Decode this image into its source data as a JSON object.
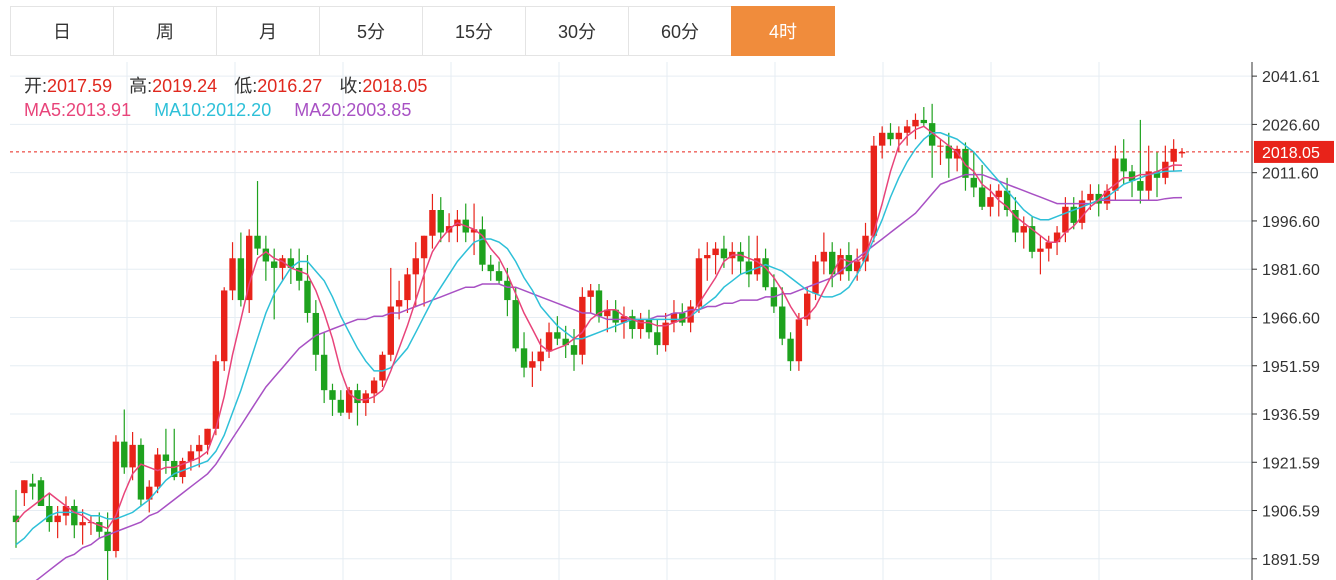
{
  "tabs": [
    {
      "label": "日",
      "active": false
    },
    {
      "label": "周",
      "active": false
    },
    {
      "label": "月",
      "active": false
    },
    {
      "label": "5分",
      "active": false
    },
    {
      "label": "15分",
      "active": false
    },
    {
      "label": "30分",
      "active": false
    },
    {
      "label": "60分",
      "active": false
    },
    {
      "label": "4时",
      "active": true
    }
  ],
  "ohlc": {
    "open_label": "开:",
    "open": "2017.59",
    "high_label": "高:",
    "high": "2019.24",
    "low_label": "低:",
    "low": "2016.27",
    "close_label": "收:",
    "close": "2018.05"
  },
  "ma": {
    "ma5_label": "MA5:",
    "ma5": "2013.91",
    "ma10_label": "MA10:",
    "ma10": "2012.20",
    "ma20_label": "MA20:",
    "ma20": "2003.85"
  },
  "colors": {
    "up": "#e8231a",
    "down": "#1ea21e",
    "ma5": "#e8447a",
    "ma10": "#2ec0d8",
    "ma20": "#a851c4",
    "grid": "#e6edf3",
    "active_tab": "#f08c3c",
    "price_tag": "#e8231a"
  },
  "chart_data": {
    "type": "candlestick",
    "ylim": [
      1885,
      2046
    ],
    "y_ticks": [
      "2041.61",
      "2026.60",
      "2011.60",
      "1996.60",
      "1981.60",
      "1966.60",
      "1951.59",
      "1936.59",
      "1921.59",
      "1906.59",
      "1891.59"
    ],
    "current_price": "2018.05",
    "candles": [
      [
        1905,
        1913,
        1895,
        1903
      ],
      [
        1912,
        1916,
        1908,
        1916
      ],
      [
        1915,
        1918,
        1910,
        1914
      ],
      [
        1916,
        1917,
        1908,
        1908
      ],
      [
        1908,
        1912,
        1900,
        1903
      ],
      [
        1903,
        1908,
        1898,
        1905
      ],
      [
        1905,
        1911,
        1902,
        1908
      ],
      [
        1908,
        1910,
        1898,
        1902
      ],
      [
        1902,
        1907,
        1896,
        1903
      ],
      [
        1903,
        1905,
        1899,
        1903
      ],
      [
        1903,
        1906,
        1898,
        1900
      ],
      [
        1900,
        1906,
        1885,
        1894
      ],
      [
        1894,
        1930,
        1892,
        1928
      ],
      [
        1928,
        1938,
        1918,
        1920
      ],
      [
        1920,
        1931,
        1916,
        1927
      ],
      [
        1927,
        1929,
        1908,
        1910
      ],
      [
        1910,
        1916,
        1906,
        1914
      ],
      [
        1914,
        1926,
        1912,
        1924
      ],
      [
        1924,
        1932,
        1918,
        1922
      ],
      [
        1922,
        1932,
        1916,
        1917
      ],
      [
        1917,
        1923,
        1915,
        1922
      ],
      [
        1922,
        1927,
        1919,
        1925
      ],
      [
        1925,
        1930,
        1920,
        1927
      ],
      [
        1927,
        1932,
        1924,
        1932
      ],
      [
        1932,
        1955,
        1930,
        1953
      ],
      [
        1953,
        1976,
        1950,
        1975
      ],
      [
        1975,
        1990,
        1972,
        1985
      ],
      [
        1985,
        1993,
        1970,
        1972
      ],
      [
        1972,
        1994,
        1968,
        1992
      ],
      [
        1992,
        2009,
        1986,
        1988
      ],
      [
        1988,
        1992,
        1978,
        1984
      ],
      [
        1984,
        1988,
        1966,
        1982
      ],
      [
        1982,
        1986,
        1978,
        1985
      ],
      [
        1985,
        1988,
        1977,
        1982
      ],
      [
        1982,
        1988,
        1975,
        1978
      ],
      [
        1978,
        1986,
        1965,
        1968
      ],
      [
        1968,
        1972,
        1950,
        1955
      ],
      [
        1955,
        1962,
        1940,
        1944
      ],
      [
        1944,
        1946,
        1936,
        1941
      ],
      [
        1941,
        1944,
        1936,
        1937
      ],
      [
        1937,
        1945,
        1935,
        1944
      ],
      [
        1944,
        1946,
        1933,
        1940
      ],
      [
        1940,
        1944,
        1936,
        1943
      ],
      [
        1943,
        1948,
        1940,
        1947
      ],
      [
        1947,
        1956,
        1945,
        1955
      ],
      [
        1955,
        1982,
        1953,
        1970
      ],
      [
        1970,
        1978,
        1966,
        1972
      ],
      [
        1972,
        1982,
        1968,
        1980
      ],
      [
        1980,
        1990,
        1970,
        1985
      ],
      [
        1985,
        1992,
        1970,
        1992
      ],
      [
        1992,
        2005,
        1988,
        2000
      ],
      [
        2000,
        2004,
        1990,
        1993
      ],
      [
        1993,
        1999,
        1990,
        1995
      ],
      [
        1995,
        2000,
        1990,
        1997
      ],
      [
        1997,
        2002,
        1990,
        1993
      ],
      [
        1993,
        2002,
        1986,
        1994
      ],
      [
        1994,
        1998,
        1981,
        1983
      ],
      [
        1983,
        1986,
        1978,
        1981
      ],
      [
        1981,
        1984,
        1977,
        1978
      ],
      [
        1978,
        1982,
        1967,
        1972
      ],
      [
        1972,
        1976,
        1956,
        1957
      ],
      [
        1957,
        1962,
        1948,
        1951
      ],
      [
        1951,
        1956,
        1945,
        1953
      ],
      [
        1953,
        1960,
        1950,
        1956
      ],
      [
        1956,
        1965,
        1954,
        1962
      ],
      [
        1962,
        1967,
        1958,
        1960
      ],
      [
        1960,
        1964,
        1954,
        1958
      ],
      [
        1958,
        1963,
        1950,
        1955
      ],
      [
        1955,
        1976,
        1952,
        1973
      ],
      [
        1973,
        1977,
        1968,
        1975
      ],
      [
        1975,
        1977,
        1965,
        1967
      ],
      [
        1967,
        1972,
        1962,
        1969
      ],
      [
        1969,
        1972,
        1962,
        1965
      ],
      [
        1965,
        1970,
        1960,
        1967
      ],
      [
        1967,
        1969,
        1960,
        1963
      ],
      [
        1963,
        1968,
        1960,
        1966
      ],
      [
        1966,
        1969,
        1960,
        1962
      ],
      [
        1962,
        1966,
        1955,
        1958
      ],
      [
        1958,
        1968,
        1956,
        1965
      ],
      [
        1965,
        1972,
        1962,
        1968
      ],
      [
        1968,
        1971,
        1964,
        1965
      ],
      [
        1965,
        1972,
        1962,
        1970
      ],
      [
        1970,
        1988,
        1968,
        1985
      ],
      [
        1985,
        1990,
        1978,
        1986
      ],
      [
        1986,
        1990,
        1980,
        1988
      ],
      [
        1988,
        1992,
        1982,
        1985
      ],
      [
        1985,
        1990,
        1980,
        1987
      ],
      [
        1987,
        1990,
        1980,
        1984
      ],
      [
        1984,
        1992,
        1976,
        1980
      ],
      [
        1980,
        1992,
        1978,
        1985
      ],
      [
        1985,
        1988,
        1975,
        1976
      ],
      [
        1976,
        1980,
        1968,
        1970
      ],
      [
        1970,
        1976,
        1958,
        1960
      ],
      [
        1960,
        1962,
        1950,
        1953
      ],
      [
        1953,
        1968,
        1950,
        1966
      ],
      [
        1966,
        1976,
        1964,
        1974
      ],
      [
        1974,
        1986,
        1972,
        1984
      ],
      [
        1984,
        1993,
        1980,
        1987
      ],
      [
        1987,
        1990,
        1976,
        1980
      ],
      [
        1980,
        1988,
        1978,
        1986
      ],
      [
        1986,
        1990,
        1978,
        1981
      ],
      [
        1981,
        1988,
        1978,
        1984
      ],
      [
        1984,
        1996,
        1981,
        1992
      ],
      [
        1992,
        2023,
        1990,
        2020
      ],
      [
        2020,
        2026,
        2016,
        2024
      ],
      [
        2024,
        2027,
        2020,
        2022
      ],
      [
        2022,
        2026,
        2018,
        2024
      ],
      [
        2024,
        2028,
        2020,
        2026
      ],
      [
        2026,
        2030,
        2022,
        2028
      ],
      [
        2028,
        2032,
        2026,
        2027
      ],
      [
        2027,
        2033,
        2010,
        2020
      ],
      [
        2020,
        2022,
        2014,
        2020
      ],
      [
        2020,
        2024,
        2010,
        2016
      ],
      [
        2016,
        2020,
        2012,
        2019
      ],
      [
        2019,
        2021,
        2006,
        2010
      ],
      [
        2010,
        2018,
        2004,
        2007
      ],
      [
        2007,
        2014,
        2000,
        2001
      ],
      [
        2001,
        2008,
        1998,
        2004
      ],
      [
        2004,
        2008,
        1998,
        2006
      ],
      [
        2006,
        2010,
        1998,
        2000
      ],
      [
        2000,
        2004,
        1990,
        1993
      ],
      [
        1993,
        1998,
        1988,
        1995
      ],
      [
        1995,
        1998,
        1985,
        1987
      ],
      [
        1987,
        1992,
        1980,
        1988
      ],
      [
        1988,
        1992,
        1984,
        1990
      ],
      [
        1990,
        1995,
        1986,
        1993
      ],
      [
        1993,
        2004,
        1990,
        2001
      ],
      [
        2001,
        2004,
        1994,
        1996
      ],
      [
        1996,
        2006,
        1994,
        2003
      ],
      [
        2003,
        2008,
        2000,
        2005
      ],
      [
        2005,
        2008,
        1998,
        2002
      ],
      [
        2002,
        2008,
        2000,
        2006
      ],
      [
        2006,
        2020,
        2003,
        2016
      ],
      [
        2016,
        2022,
        2008,
        2012
      ],
      [
        2012,
        2014,
        2004,
        2009
      ],
      [
        2009,
        2028,
        2002,
        2006
      ],
      [
        2006,
        2020,
        2003,
        2012
      ],
      [
        2012,
        2018,
        2004,
        2010
      ],
      [
        2010,
        2020,
        2008,
        2015
      ],
      [
        2015,
        2022,
        2012,
        2019
      ],
      [
        2017.59,
        2019.24,
        2016.27,
        2018.05
      ]
    ],
    "ma5": [
      1903,
      1906,
      1908,
      1910,
      1912,
      1910,
      1908,
      1906,
      1905,
      1903,
      1902,
      1901,
      1905,
      1912,
      1918,
      1921,
      1920,
      1919,
      1920,
      1920,
      1921,
      1922,
      1923,
      1925,
      1932,
      1942,
      1955,
      1966,
      1977,
      1985,
      1987,
      1985,
      1984,
      1982,
      1981,
      1980,
      1975,
      1968,
      1960,
      1950,
      1943,
      1941,
      1941,
      1942,
      1944,
      1950,
      1957,
      1964,
      1972,
      1980,
      1987,
      1991,
      1994,
      1996,
      1995,
      1994,
      1992,
      1988,
      1985,
      1980,
      1974,
      1968,
      1963,
      1958,
      1956,
      1957,
      1958,
      1960,
      1962,
      1966,
      1968,
      1969,
      1969,
      1967,
      1966,
      1965,
      1965,
      1964,
      1964,
      1965,
      1966,
      1967,
      1971,
      1975,
      1979,
      1984,
      1986,
      1986,
      1985,
      1984,
      1982,
      1979,
      1975,
      1970,
      1966,
      1967,
      1970,
      1975,
      1980,
      1985,
      1984,
      1984,
      1986,
      1993,
      2002,
      2012,
      2020,
      2023,
      2025,
      2026,
      2024,
      2022,
      2020,
      2018,
      2014,
      2012,
      2008,
      2006,
      2003,
      2001,
      1998,
      1996,
      1994,
      1992,
      1990,
      1990,
      1993,
      1995,
      1998,
      2001,
      2003,
      2006,
      2008,
      2010,
      2010,
      2011,
      2011,
      2012,
      2013,
      2014,
      2013.91
    ],
    "ma10": [
      1896,
      1898,
      1901,
      1903,
      1905,
      1906,
      1906,
      1906,
      1906,
      1905,
      1905,
      1904,
      1904,
      1905,
      1906,
      1908,
      1910,
      1913,
      1916,
      1918,
      1919,
      1920,
      1921,
      1922,
      1925,
      1930,
      1937,
      1944,
      1952,
      1960,
      1968,
      1974,
      1978,
      1982,
      1984,
      1984,
      1981,
      1978,
      1973,
      1967,
      1962,
      1957,
      1953,
      1950,
      1950,
      1951,
      1954,
      1957,
      1962,
      1967,
      1972,
      1976,
      1980,
      1984,
      1987,
      1990,
      1991,
      1991,
      1990,
      1988,
      1984,
      1979,
      1975,
      1970,
      1967,
      1964,
      1962,
      1960,
      1960,
      1961,
      1962,
      1963,
      1964,
      1965,
      1966,
      1966,
      1966,
      1966,
      1966,
      1966,
      1966,
      1967,
      1969,
      1971,
      1973,
      1976,
      1978,
      1980,
      1981,
      1982,
      1983,
      1982,
      1981,
      1979,
      1977,
      1975,
      1974,
      1973,
      1973,
      1974,
      1976,
      1980,
      1985,
      1991,
      1997,
      2004,
      2010,
      2015,
      2019,
      2022,
      2024,
      2024,
      2023,
      2022,
      2020,
      2018,
      2015,
      2012,
      2009,
      2006,
      2003,
      2000,
      1998,
      1997,
      1997,
      1998,
      1999,
      2000,
      2001,
      2002,
      2003,
      2004,
      2006,
      2008,
      2009,
      2010,
      2011,
      2011.5,
      2012,
      2012.1,
      2012.2
    ],
    "ma20": [
      1880,
      1882,
      1884,
      1886,
      1888,
      1890,
      1892,
      1893,
      1895,
      1896,
      1898,
      1899,
      1900,
      1901,
      1902,
      1903,
      1905,
      1906,
      1908,
      1910,
      1912,
      1914,
      1916,
      1918,
      1921,
      1925,
      1929,
      1933,
      1937,
      1941,
      1945,
      1948,
      1951,
      1954,
      1957,
      1959,
      1961,
      1962,
      1963,
      1964,
      1965,
      1966,
      1966,
      1967,
      1967,
      1968,
      1968,
      1969,
      1970,
      1971,
      1972,
      1973,
      1974,
      1975,
      1976,
      1976,
      1977,
      1977,
      1977,
      1976,
      1976,
      1975,
      1974,
      1973,
      1972,
      1971,
      1970,
      1969,
      1968,
      1968,
      1967,
      1966,
      1966,
      1966,
      1966,
      1966,
      1966,
      1967,
      1967,
      1968,
      1968,
      1969,
      1969,
      1970,
      1970,
      1971,
      1971,
      1972,
      1972,
      1972,
      1973,
      1973,
      1974,
      1974,
      1975,
      1976,
      1977,
      1978,
      1979,
      1981,
      1983,
      1985,
      1987,
      1989,
      1991,
      1993,
      1995,
      1997,
      1999,
      2002,
      2005,
      2008,
      2009,
      2010,
      2011,
      2011,
      2011,
      2010,
      2009,
      2008,
      2007,
      2006,
      2005,
      2004,
      2003,
      2002,
      2002,
      2002,
      2002,
      2002,
      2003,
      2003,
      2003,
      2003,
      2003,
      2003,
      2003,
      2003,
      2003.5,
      2003.8,
      2003.85
    ]
  }
}
